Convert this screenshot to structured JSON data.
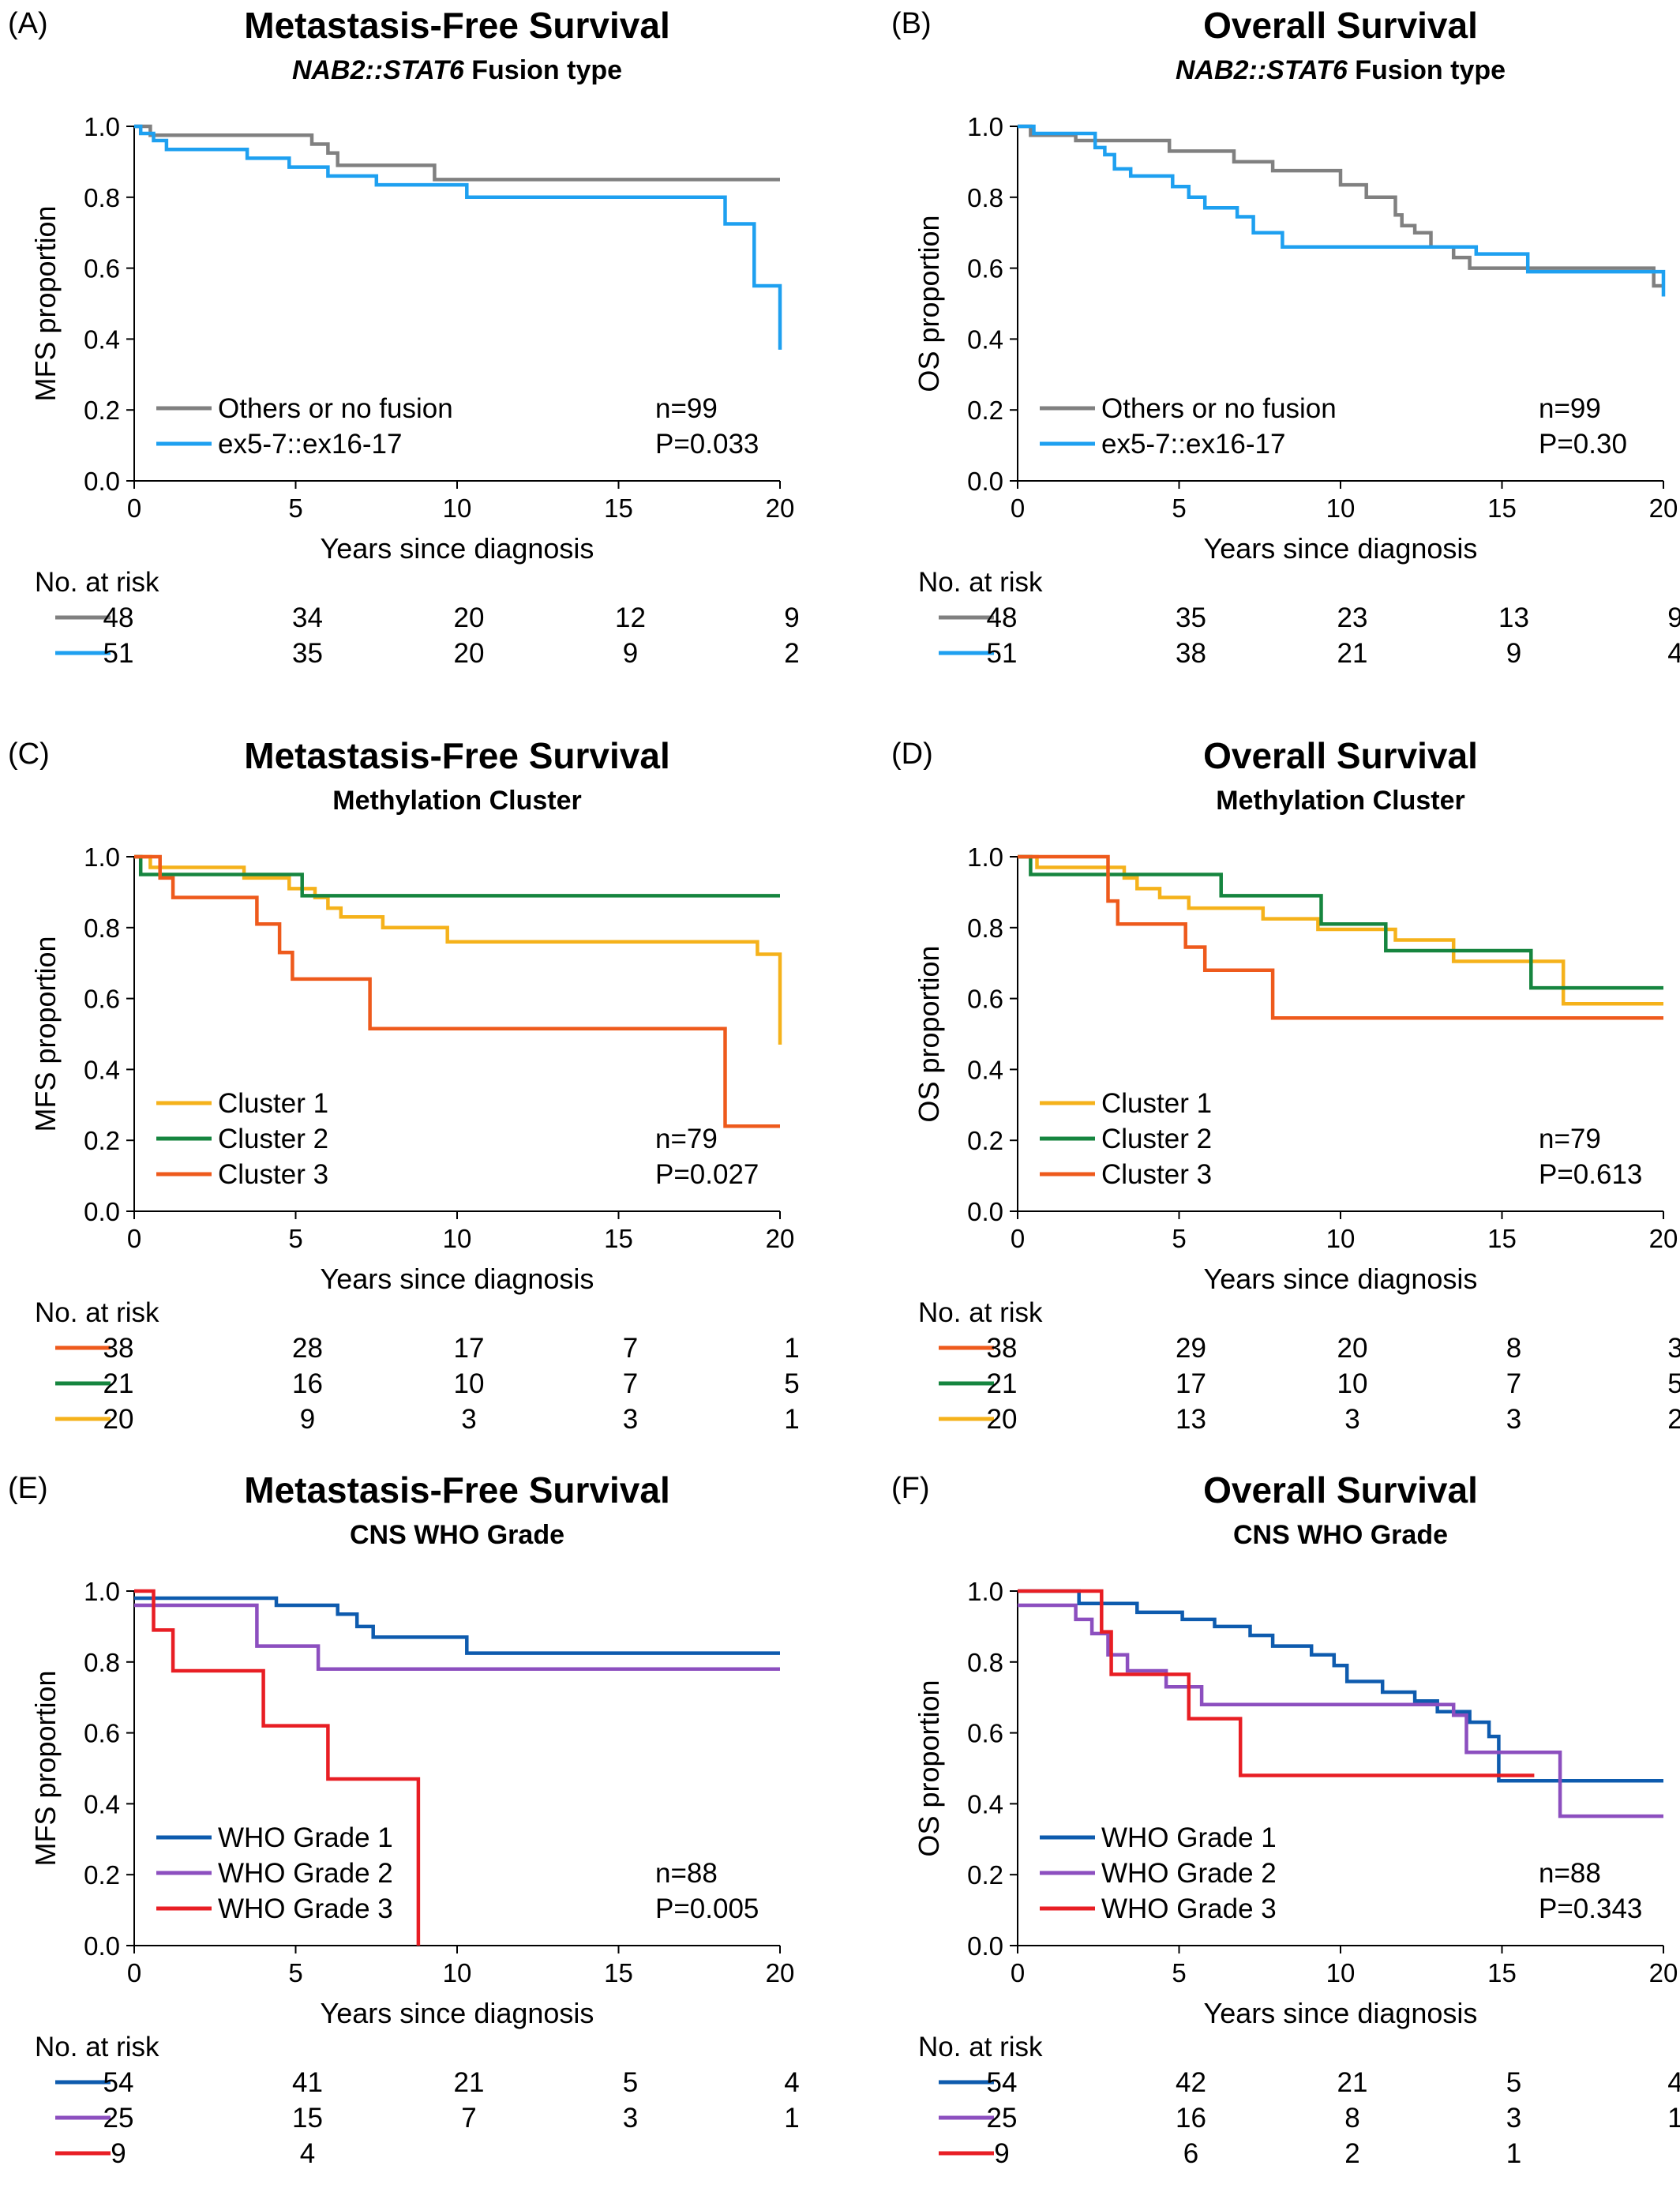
{
  "colors": {
    "grey": "#808080",
    "blue_light": "#1EA0F0",
    "yellow": "#F5B21B",
    "green": "#16853F",
    "orange": "#EE5A1C",
    "blue_dark": "#0E5BAE",
    "purple": "#8C4FBF",
    "red": "#E81E24"
  },
  "chart_data": [
    {
      "type": "line",
      "panel": "(A)",
      "title": "Metastasis-Free Survival",
      "subtitle_italic": "NAB2::STAT6",
      "subtitle_rest": " Fusion type",
      "xlabel": "Years since diagnosis",
      "ylabel": "MFS proportion",
      "xlim": [
        0,
        20
      ],
      "ylim": [
        0,
        1
      ],
      "xticks": [
        "0",
        "5",
        "10",
        "15",
        "20"
      ],
      "yticks": [
        "0.0",
        "0.2",
        "0.4",
        "0.6",
        "0.8",
        "1.0"
      ],
      "stat_n": "n=99",
      "stat_p": "P=0.033",
      "series": [
        {
          "name": "Others or no fusion",
          "color": "grey",
          "x": [
            0,
            0.5,
            5,
            5.5,
            6,
            6.3,
            9.3,
            20
          ],
          "y": [
            1,
            0.975,
            0.975,
            0.95,
            0.925,
            0.89,
            0.85,
            0.85
          ]
        },
        {
          "name": "ex5-7::ex16-17",
          "color": "blue_light",
          "x": [
            0,
            0.2,
            0.6,
            1,
            3.5,
            4.8,
            6,
            7.5,
            10.3,
            18.3,
            19.2,
            20
          ],
          "y": [
            1,
            0.98,
            0.96,
            0.935,
            0.91,
            0.885,
            0.86,
            0.835,
            0.8,
            0.725,
            0.55,
            0.37
          ]
        }
      ],
      "risk_title": "No. at risk",
      "risk_rows": [
        {
          "color": "grey",
          "values": [
            "48",
            "34",
            "20",
            "12",
            "9"
          ]
        },
        {
          "color": "blue_light",
          "values": [
            "51",
            "35",
            "20",
            "9",
            "2"
          ]
        }
      ]
    },
    {
      "type": "line",
      "panel": "(B)",
      "title": "Overall Survival",
      "subtitle_italic": "NAB2::STAT6",
      "subtitle_rest": " Fusion type",
      "xlabel": "Years since diagnosis",
      "ylabel": "OS proportion",
      "xlim": [
        0,
        20
      ],
      "ylim": [
        0,
        1
      ],
      "xticks": [
        "0",
        "5",
        "10",
        "15",
        "20"
      ],
      "yticks": [
        "0.0",
        "0.2",
        "0.4",
        "0.6",
        "0.8",
        "1.0"
      ],
      "stat_n": "n=99",
      "stat_p": "P=0.30",
      "series": [
        {
          "name": "Others or no fusion",
          "color": "grey",
          "x": [
            0,
            0.4,
            1.8,
            4.7,
            6.7,
            7.9,
            10,
            10.8,
            11.7,
            11.9,
            12.3,
            12.8,
            13.5,
            14,
            19.7,
            20
          ],
          "y": [
            1,
            0.975,
            0.96,
            0.93,
            0.9,
            0.875,
            0.835,
            0.8,
            0.75,
            0.72,
            0.7,
            0.66,
            0.63,
            0.6,
            0.55,
            0.55
          ]
        },
        {
          "name": "ex5-7::ex16-17",
          "color": "blue_light",
          "x": [
            0,
            0.5,
            2.4,
            2.7,
            3,
            3.5,
            4.8,
            5.3,
            5.8,
            6.8,
            7.3,
            8.2,
            14.2,
            15.8,
            20
          ],
          "y": [
            1,
            0.98,
            0.94,
            0.92,
            0.88,
            0.86,
            0.83,
            0.8,
            0.77,
            0.745,
            0.7,
            0.66,
            0.64,
            0.59,
            0.52
          ]
        }
      ],
      "risk_title": "No. at risk",
      "risk_rows": [
        {
          "color": "grey",
          "values": [
            "48",
            "35",
            "23",
            "13",
            "9"
          ]
        },
        {
          "color": "blue_light",
          "values": [
            "51",
            "38",
            "21",
            "9",
            "4"
          ]
        }
      ]
    },
    {
      "type": "line",
      "panel": "(C)",
      "title": "Metastasis-Free Survival",
      "subtitle_italic": "",
      "subtitle_rest": "Methylation Cluster",
      "xlabel": "Years since diagnosis",
      "ylabel": "MFS proportion",
      "xlim": [
        0,
        20
      ],
      "ylim": [
        0,
        1
      ],
      "xticks": [
        "0",
        "5",
        "10",
        "15",
        "20"
      ],
      "yticks": [
        "0.0",
        "0.2",
        "0.4",
        "0.6",
        "0.8",
        "1.0"
      ],
      "stat_n": "n=79",
      "stat_p": "P=0.027",
      "series": [
        {
          "name": "Cluster 1",
          "color": "yellow",
          "x": [
            0,
            0.5,
            3.4,
            4.8,
            5.6,
            6,
            6.4,
            7.7,
            9.7,
            19.3,
            20
          ],
          "y": [
            1,
            0.97,
            0.94,
            0.91,
            0.885,
            0.855,
            0.83,
            0.8,
            0.76,
            0.725,
            0.47
          ]
        },
        {
          "name": "Cluster 2",
          "color": "green",
          "x": [
            0,
            0.2,
            5.2,
            20
          ],
          "y": [
            1,
            0.95,
            0.89,
            0.89
          ]
        },
        {
          "name": "Cluster 3",
          "color": "orange",
          "x": [
            0,
            0.8,
            1.2,
            3.8,
            4.5,
            4.9,
            7.3,
            18.3,
            20
          ],
          "y": [
            1,
            0.94,
            0.885,
            0.81,
            0.73,
            0.655,
            0.515,
            0.24,
            0.24
          ]
        }
      ],
      "risk_title": "No. at risk",
      "risk_rows": [
        {
          "color": "orange",
          "values": [
            "38",
            "28",
            "17",
            "7",
            "1"
          ]
        },
        {
          "color": "green",
          "values": [
            "21",
            "16",
            "10",
            "7",
            "5"
          ]
        },
        {
          "color": "yellow",
          "values": [
            "20",
            "9",
            "3",
            "3",
            "1"
          ]
        }
      ]
    },
    {
      "type": "line",
      "panel": "(D)",
      "title": "Overall Survival",
      "subtitle_italic": "",
      "subtitle_rest": "Methylation Cluster",
      "xlabel": "Years since diagnosis",
      "ylabel": "OS proportion",
      "xlim": [
        0,
        20
      ],
      "ylim": [
        0,
        1
      ],
      "xticks": [
        "0",
        "5",
        "10",
        "15",
        "20"
      ],
      "yticks": [
        "0.0",
        "0.2",
        "0.4",
        "0.6",
        "0.8",
        "1.0"
      ],
      "stat_n": "n=79",
      "stat_p": "P=0.613",
      "series": [
        {
          "name": "Cluster 1",
          "color": "yellow",
          "x": [
            0,
            0.6,
            3.3,
            3.7,
            4.4,
            5.3,
            7.6,
            9.3,
            11.7,
            13.5,
            16.9,
            20
          ],
          "y": [
            1,
            0.97,
            0.94,
            0.91,
            0.885,
            0.855,
            0.825,
            0.795,
            0.765,
            0.705,
            0.585,
            0.585
          ]
        },
        {
          "name": "Cluster 2",
          "color": "green",
          "x": [
            0,
            0.4,
            6.3,
            9.4,
            11.4,
            15.9,
            20
          ],
          "y": [
            1,
            0.95,
            0.89,
            0.81,
            0.735,
            0.63,
            0.63
          ]
        },
        {
          "name": "Cluster 3",
          "color": "orange",
          "x": [
            0,
            2.8,
            3.1,
            5.2,
            5.8,
            7.9,
            20
          ],
          "y": [
            1,
            0.875,
            0.81,
            0.745,
            0.68,
            0.545,
            0.545
          ]
        }
      ],
      "risk_title": "No. at risk",
      "risk_rows": [
        {
          "color": "orange",
          "values": [
            "38",
            "29",
            "20",
            "8",
            "3"
          ]
        },
        {
          "color": "green",
          "values": [
            "21",
            "17",
            "10",
            "7",
            "5"
          ]
        },
        {
          "color": "yellow",
          "values": [
            "20",
            "13",
            "3",
            "3",
            "2"
          ]
        }
      ]
    },
    {
      "type": "line",
      "panel": "(E)",
      "title": "Metastasis-Free Survival",
      "subtitle_italic": "",
      "subtitle_rest": "CNS WHO Grade",
      "xlabel": "Years since diagnosis",
      "ylabel": "MFS proportion",
      "xlim": [
        0,
        20
      ],
      "ylim": [
        0,
        1
      ],
      "xticks": [
        "0",
        "5",
        "10",
        "15",
        "20"
      ],
      "yticks": [
        "0.0",
        "0.2",
        "0.4",
        "0.6",
        "0.8",
        "1.0"
      ],
      "stat_n": "n=88",
      "stat_p": "P=0.005",
      "series": [
        {
          "name": "WHO Grade 1",
          "color": "blue_dark",
          "x": [
            0,
            4.4,
            6.3,
            6.9,
            7.4,
            10.3,
            20
          ],
          "y": [
            0.98,
            0.96,
            0.935,
            0.9,
            0.87,
            0.825,
            0.825
          ]
        },
        {
          "name": "WHO Grade 2",
          "color": "purple",
          "x": [
            0,
            3.8,
            5.7,
            20
          ],
          "y": [
            0.96,
            0.845,
            0.78,
            0.78
          ]
        },
        {
          "name": "WHO Grade 3",
          "color": "red",
          "x": [
            0,
            0.6,
            1.2,
            4,
            6,
            8.8
          ],
          "y": [
            1,
            0.89,
            0.775,
            0.62,
            0.47,
            0
          ]
        }
      ],
      "risk_title": "No. at risk",
      "risk_rows": [
        {
          "color": "blue_dark",
          "values": [
            "54",
            "41",
            "21",
            "5",
            "4"
          ]
        },
        {
          "color": "purple",
          "values": [
            "25",
            "15",
            "7",
            "3",
            "1"
          ]
        },
        {
          "color": "red",
          "values": [
            "9",
            "4",
            "",
            "",
            ""
          ]
        }
      ]
    },
    {
      "type": "line",
      "panel": "(F)",
      "title": "Overall Survival",
      "subtitle_italic": "",
      "subtitle_rest": "CNS WHO Grade",
      "xlabel": "Years since diagnosis",
      "ylabel": "OS proportion",
      "xlim": [
        0,
        20
      ],
      "ylim": [
        0,
        1
      ],
      "xticks": [
        "0",
        "5",
        "10",
        "15",
        "20"
      ],
      "yticks": [
        "0.0",
        "0.2",
        "0.4",
        "0.6",
        "0.8",
        "1.0"
      ],
      "stat_n": "n=88",
      "stat_p": "P=0.343",
      "series": [
        {
          "name": "WHO Grade 1",
          "color": "blue_dark",
          "x": [
            0,
            1.9,
            3.7,
            5.1,
            6.1,
            7.2,
            7.9,
            9.1,
            9.8,
            10.2,
            11.3,
            12.3,
            13,
            14,
            14.6,
            14.9,
            20
          ],
          "y": [
            1,
            0.965,
            0.94,
            0.92,
            0.9,
            0.875,
            0.845,
            0.82,
            0.79,
            0.745,
            0.715,
            0.69,
            0.66,
            0.63,
            0.59,
            0.465,
            0.465
          ]
        },
        {
          "name": "WHO Grade 2",
          "color": "purple",
          "x": [
            0,
            1.8,
            2.3,
            2.8,
            3.4,
            4.6,
            5.7,
            13.5,
            13.9,
            16.8,
            20
          ],
          "y": [
            0.96,
            0.92,
            0.88,
            0.82,
            0.775,
            0.73,
            0.68,
            0.65,
            0.545,
            0.365,
            0.365
          ]
        },
        {
          "name": "WHO Grade 3",
          "color": "red",
          "x": [
            0,
            2.6,
            2.9,
            5.3,
            6.9,
            16
          ],
          "y": [
            1,
            0.885,
            0.765,
            0.64,
            0.48,
            0.48
          ]
        }
      ],
      "risk_title": "No. at risk",
      "risk_rows": [
        {
          "color": "blue_dark",
          "values": [
            "54",
            "42",
            "21",
            "5",
            "4"
          ]
        },
        {
          "color": "purple",
          "values": [
            "25",
            "16",
            "8",
            "3",
            "1"
          ]
        },
        {
          "color": "red",
          "values": [
            "9",
            "6",
            "2",
            "1",
            ""
          ]
        }
      ]
    }
  ]
}
